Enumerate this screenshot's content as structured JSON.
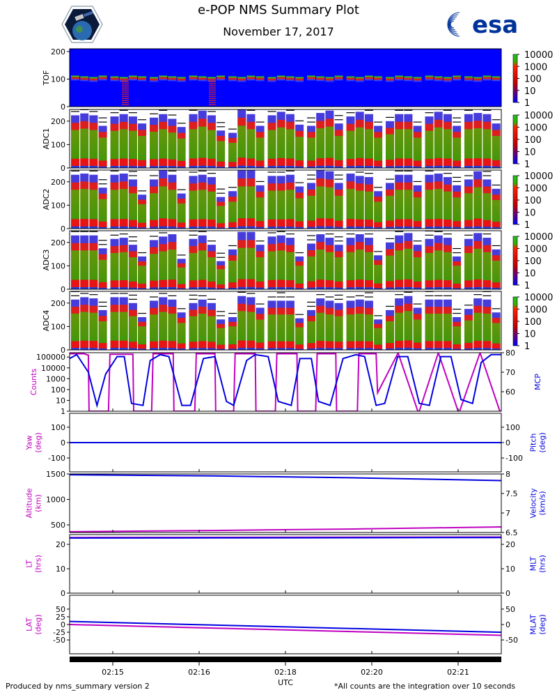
{
  "header": {
    "title": "e-POP NMS Summary Plot",
    "date": "November 17, 2017",
    "esa_label": "esa"
  },
  "footer": {
    "left": "Produced by nms_summary version 2",
    "right": "*All counts are the integration over 10 seconds"
  },
  "colors": {
    "magenta": "#c000c0",
    "blue": "#0000e0",
    "spec_bg": "#0000ff"
  },
  "chart_data": [
    {
      "type": "heatmap",
      "name": "TOF",
      "ylabel": "TOF",
      "ylim": [
        0,
        210
      ],
      "yticks": [
        0,
        100,
        200
      ],
      "colorbar": {
        "scale": "log",
        "ticks": [
          "10000",
          "1000",
          "100",
          "10",
          "1"
        ]
      },
      "band_center": 100
    },
    {
      "type": "heatmap",
      "name": "ADC1",
      "ylabel": "ADC1",
      "ylim": [
        0,
        250
      ],
      "yticks": [
        0,
        100,
        200
      ],
      "colorbar": {
        "scale": "log",
        "ticks": [
          "10000",
          "1000",
          "100",
          "10",
          "1"
        ]
      },
      "block_tops": [
        225,
        233,
        225,
        180,
        220,
        230,
        220,
        190,
        215,
        230,
        210,
        175,
        230,
        245,
        225,
        160,
        150,
        250,
        230,
        180,
        225,
        240,
        230,
        185,
        180,
        235,
        245,
        190,
        220,
        240,
        230,
        180,
        200,
        230,
        230,
        180,
        220,
        240,
        230,
        180,
        230,
        235,
        230,
        190
      ]
    },
    {
      "type": "heatmap",
      "name": "ADC2",
      "ylabel": "ADC2",
      "ylim": [
        0,
        250
      ],
      "yticks": [
        0,
        100,
        200
      ],
      "colorbar": {
        "scale": "log",
        "ticks": [
          "10000",
          "1000",
          "100",
          "10",
          "1"
        ]
      },
      "block_tops": [
        230,
        235,
        230,
        175,
        230,
        235,
        210,
        145,
        210,
        250,
        230,
        150,
        225,
        230,
        220,
        135,
        160,
        250,
        250,
        185,
        225,
        225,
        230,
        180,
        195,
        250,
        245,
        195,
        235,
        225,
        220,
        160,
        195,
        230,
        230,
        185,
        230,
        235,
        220,
        185,
        210,
        245,
        210,
        170
      ]
    },
    {
      "type": "heatmap",
      "name": "ADC3",
      "ylabel": "ADC3",
      "ylim": [
        0,
        250
      ],
      "yticks": [
        0,
        100,
        200
      ],
      "colorbar": {
        "scale": "log",
        "ticks": [
          "10000",
          "1000",
          "100",
          "10",
          "1"
        ]
      },
      "block_tops": [
        230,
        230,
        230,
        175,
        215,
        220,
        190,
        140,
        210,
        225,
        235,
        130,
        215,
        230,
        190,
        120,
        170,
        245,
        245,
        190,
        225,
        230,
        220,
        140,
        195,
        235,
        220,
        190,
        220,
        235,
        220,
        145,
        200,
        230,
        240,
        190,
        215,
        230,
        220,
        140,
        215,
        240,
        220,
        170
      ]
    },
    {
      "type": "heatmap",
      "name": "ADC4",
      "ylabel": "ADC4",
      "ylim": [
        0,
        250
      ],
      "yticks": [
        0,
        100,
        200
      ],
      "colorbar": {
        "scale": "log",
        "ticks": [
          "10000",
          "1000",
          "100",
          "10",
          "1"
        ]
      },
      "block_tops": [
        215,
        225,
        220,
        170,
        225,
        225,
        200,
        140,
        210,
        225,
        215,
        160,
        200,
        215,
        200,
        130,
        140,
        230,
        225,
        180,
        210,
        210,
        210,
        135,
        170,
        220,
        210,
        200,
        210,
        215,
        210,
        130,
        170,
        220,
        230,
        180,
        215,
        215,
        215,
        140,
        175,
        220,
        215,
        160
      ]
    },
    {
      "type": "line",
      "name": "Counts/MCP",
      "ylabel_left": "Counts",
      "ylabel_right": "MCP",
      "left_scale": "log",
      "left_ticks": [
        "100000",
        "10000",
        "1000",
        "100",
        "10",
        "1"
      ],
      "right_ylim": [
        50,
        80
      ],
      "right_ticks": [
        60,
        70,
        80
      ],
      "series": [
        {
          "name": "Counts",
          "color": "magenta",
          "axis": "left",
          "x": [
            0.0,
            0.6,
            1.0,
            1.3,
            1.35,
            2.7,
            2.8,
            4.4,
            4.45,
            5.7,
            5.8,
            7.2,
            7.25,
            8.7,
            8.8,
            10.1,
            10.15,
            11.4,
            11.5,
            12.9,
            12.95,
            14.3,
            14.4,
            15.8,
            15.85,
            17.1,
            17.2,
            18.5,
            18.55,
            20.0,
            20.1,
            21.3,
            21.4,
            22.8,
            22.85,
            24.2,
            24.3,
            25.6,
            25.65,
            27.0,
            27.1,
            28.5,
            28.55,
            29.9,
            30.0
          ],
          "y": [
            200000,
            200000,
            200000,
            150000,
            1,
            1,
            180000,
            180000,
            1,
            1,
            200000,
            200000,
            1,
            1,
            200000,
            200000,
            1,
            1,
            200000,
            200000,
            1,
            1,
            200000,
            200000,
            1,
            1,
            200000,
            200000,
            1,
            1,
            200000,
            200000,
            50,
            200000,
            200000,
            1,
            1,
            200000,
            200000,
            1,
            1,
            200000,
            200000,
            1,
            1
          ]
        },
        {
          "name": "MCP",
          "color": "blue",
          "axis": "right",
          "x": [
            0.0,
            0.5,
            1.3,
            1.9,
            2.5,
            3.3,
            3.8,
            4.3,
            5.1,
            5.6,
            6.3,
            6.9,
            7.8,
            8.4,
            9.3,
            10.1,
            10.9,
            11.4,
            12.3,
            12.9,
            13.8,
            14.5,
            15.4,
            16.0,
            16.8,
            17.3,
            18.1,
            19.0,
            19.9,
            20.5,
            21.3,
            21.9,
            22.8,
            23.5,
            24.3,
            25.0,
            25.8,
            26.5,
            27.2,
            28.0,
            28.6,
            29.3,
            30.0
          ],
          "y": [
            77,
            79,
            70,
            53,
            69,
            78,
            78,
            54,
            53,
            76,
            79,
            78,
            53,
            53,
            77,
            78,
            55,
            53,
            76,
            79,
            78,
            55,
            53,
            77,
            77,
            55,
            53,
            77,
            79,
            78,
            53,
            54,
            78,
            78,
            54,
            53,
            78,
            78,
            56,
            54,
            75,
            79,
            79
          ]
        }
      ]
    },
    {
      "type": "line",
      "name": "Yaw/Pitch",
      "ylabel_left": "Yaw\n(deg)",
      "ylabel_right": "Pitch\n(deg)",
      "left_ylim": [
        -190,
        190
      ],
      "left_ticks": [
        -100,
        0,
        100
      ],
      "right_ylim": [
        -190,
        190
      ],
      "right_ticks": [
        -100,
        0,
        100
      ],
      "series": [
        {
          "name": "Yaw",
          "color": "magenta",
          "axis": "left",
          "x": [
            0,
            30
          ],
          "y": [
            0,
            0
          ]
        },
        {
          "name": "Pitch",
          "color": "blue",
          "axis": "right",
          "x": [
            0,
            30
          ],
          "y": [
            0,
            0
          ]
        }
      ]
    },
    {
      "type": "line",
      "name": "Altitude/Velocity",
      "ylabel_left": "Altitude\n(km)",
      "ylabel_right": "Velocity\n(km/s)",
      "left_ylim": [
        350,
        1500
      ],
      "left_ticks": [
        500,
        1000,
        1500
      ],
      "right_ylim": [
        6.5,
        8.0
      ],
      "right_ticks": [
        6.5,
        7.0,
        7.5,
        8.0
      ],
      "series": [
        {
          "name": "Altitude",
          "color": "magenta",
          "axis": "left",
          "x": [
            0,
            10,
            20,
            30
          ],
          "y": [
            365,
            390,
            420,
            460
          ]
        },
        {
          "name": "Velocity",
          "color": "blue",
          "axis": "right",
          "x": [
            0,
            10,
            20,
            30
          ],
          "y": [
            7.98,
            7.95,
            7.9,
            7.83
          ]
        }
      ]
    },
    {
      "type": "line",
      "name": "LT/MLT",
      "ylabel_left": "LT\n(hrs)",
      "ylabel_right": "MLT\n(hrs)",
      "left_ylim": [
        0,
        24
      ],
      "left_ticks": [
        0,
        10,
        20
      ],
      "right_ylim": [
        0,
        24
      ],
      "right_ticks": [
        0,
        10,
        20
      ],
      "series": [
        {
          "name": "LT",
          "color": "magenta",
          "axis": "left",
          "x": [
            0,
            30
          ],
          "y": [
            22.8,
            23.0
          ]
        },
        {
          "name": "MLT",
          "color": "blue",
          "axis": "right",
          "x": [
            0,
            30
          ],
          "y": [
            22.6,
            22.8
          ]
        }
      ]
    },
    {
      "type": "line",
      "name": "LAT/MLAT",
      "ylabel_left": "LAT\n(deg)",
      "ylabel_right": "MLAT\n(deg)",
      "left_ylim": [
        -95,
        95
      ],
      "left_ticks": [
        -50,
        -25,
        0,
        25,
        50
      ],
      "right_ylim": [
        -95,
        95
      ],
      "right_ticks": [
        -50,
        0,
        50
      ],
      "series": [
        {
          "name": "LAT",
          "color": "magenta",
          "axis": "left",
          "x": [
            0,
            30
          ],
          "y": [
            0,
            -35
          ]
        },
        {
          "name": "MLAT",
          "color": "blue",
          "axis": "right",
          "x": [
            0,
            30
          ],
          "y": [
            10,
            -25
          ]
        }
      ]
    }
  ],
  "x_axis": {
    "label": "UTC",
    "ticks": [
      {
        "t": 3,
        "label": "02:15"
      },
      {
        "t": 9,
        "label": "02:16"
      },
      {
        "t": 15,
        "label": "02:18"
      },
      {
        "t": 21,
        "label": "02:20"
      },
      {
        "t": 27,
        "label": "02:21"
      }
    ],
    "range": [
      0,
      30
    ]
  }
}
